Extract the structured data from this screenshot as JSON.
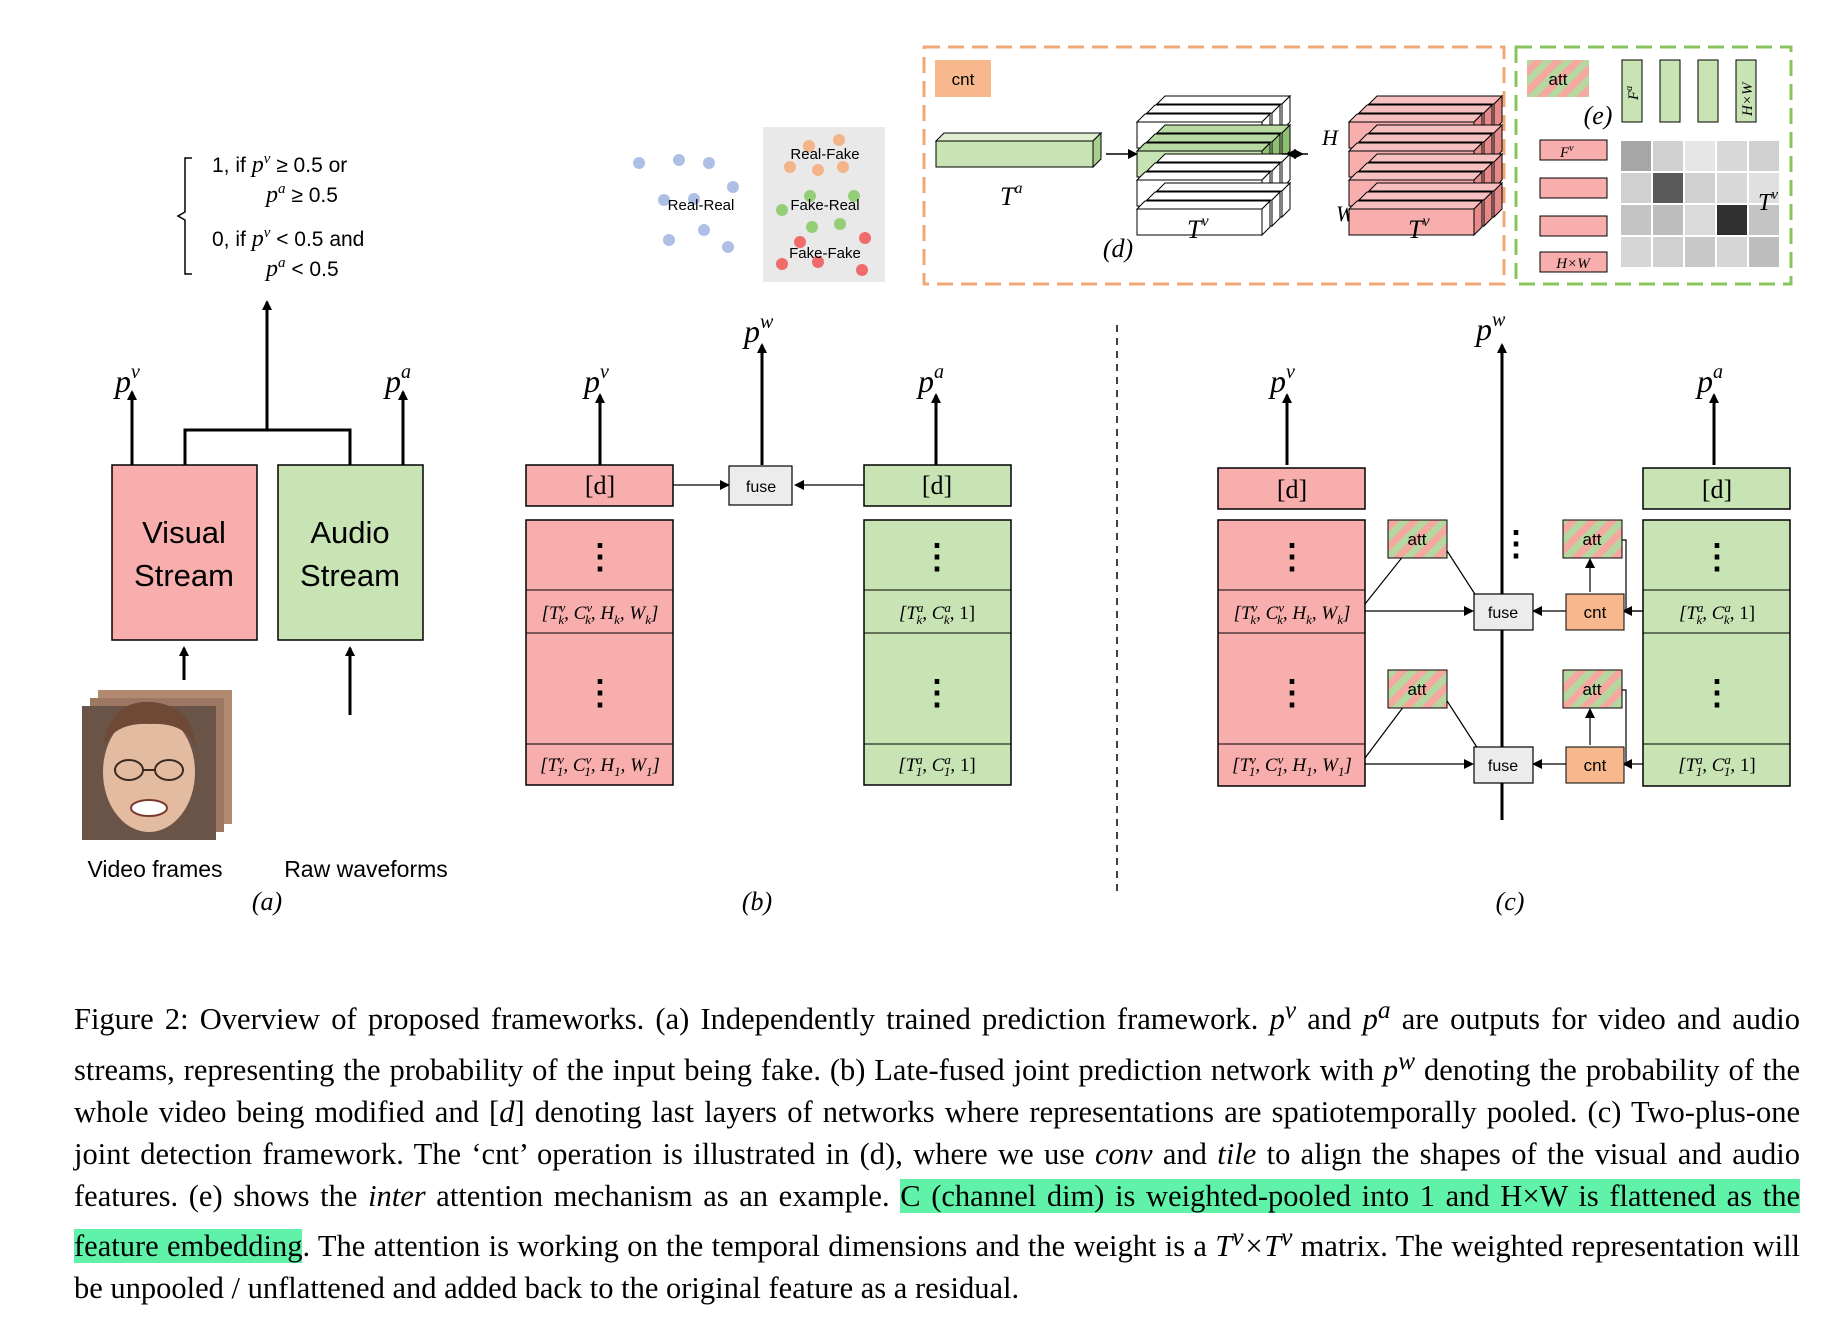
{
  "panel_a": {
    "rule": {
      "l1a": "1,  if ",
      "l1b": " ≥ 0.5 or",
      "l2b": " ≥ 0.5",
      "l3a": "0,  if ",
      "l3b": " < 0.5 and",
      "l4b": " < 0.5"
    },
    "visual_1": "Visual",
    "visual_2": "Stream",
    "audio_1": "Audio",
    "audio_2": "Stream",
    "video_label": "Video frames",
    "wave_label": "Raw waveforms",
    "sub": "(a)"
  },
  "sym": {
    "p": "p",
    "v": "v",
    "a": "a",
    "w": "w",
    "T": "T",
    "H": "H",
    "W": "W",
    "F": "F",
    "k": "k",
    "one": "1"
  },
  "panel_b": {
    "d": "[d]",
    "fuse": "fuse",
    "dots": "⋮",
    "sub": "(b)",
    "vk": "[T",
    "vrest_k": ", C",
    "a_rest": ", 1]"
  },
  "scatter": {
    "real_real": "Real-Real",
    "real_fake": "Real-Fake",
    "fake_real": "Fake-Real",
    "fake_fake": "Fake-Fake"
  },
  "panel_d": {
    "cnt": "cnt",
    "sub": "(d)"
  },
  "panel_e": {
    "att": "att",
    "sub": "(e)",
    "hxw": "H×W"
  },
  "panel_c": {
    "d": "[d]",
    "att": "att",
    "fuse": "fuse",
    "cnt": "cnt",
    "sub": "(c)"
  },
  "caption": {
    "p1": "Figure 2: Overview of proposed frameworks. (a) Independently trained prediction framework. ",
    "p2": " and ",
    "p3": " are outputs for video and audio streams, representing the probability of the input being fake. (b) Late-fused joint prediction network with ",
    "p4": " denoting the probability of the whole video being modified and [",
    "p5": "] denoting last layers of networks where representations are spatiotemporally pooled. (c) Two-plus-one joint detection framework. The ‘cnt’ operation is illustrated in (d), where we use ",
    "conv": "conv",
    "p6": " and ",
    "tile": "tile",
    "p7": " to align the shapes of the visual and audio features. (e) shows the ",
    "inter": "inter",
    "p8": " attention mechanism as an example. ",
    "highlight": "C (channel dim) is weighted-pooled into 1 and H×W is flattened as the feature embedding",
    "p9": ". The attention is working on the temporal dimensions and the weight is a ",
    "p10": " matrix. The weighted representation will be unpooled / unflattened and added back to the original feature as a residual."
  },
  "colors": {
    "red": "#f9aeae",
    "green": "#c9e4b4",
    "orange": "#f6b88c",
    "grey": "#ececec",
    "dash_orange": "#f0a878",
    "dash_green": "#88c45a"
  }
}
